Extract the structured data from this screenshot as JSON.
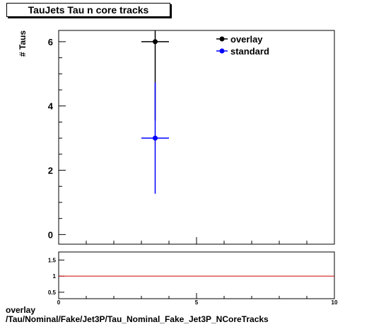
{
  "title": "TauJets Tau n core tracks",
  "footer": {
    "line1": "overlay",
    "line2": "/Tau/Nominal/Fake/Jet3P/Tau_Nominal_Fake_Jet3P_NCoreTracks"
  },
  "chart_data": [
    {
      "type": "scatter",
      "ylabel": "# Taus",
      "xlim": [
        0,
        10
      ],
      "ylim": [
        -0.3,
        6.35
      ],
      "yticks": [
        0,
        2,
        4,
        6
      ],
      "legend": "top-right",
      "series": [
        {
          "name": "overlay",
          "color": "#000000",
          "x": [
            3.5
          ],
          "y": [
            6
          ],
          "xerr": [
            0.5
          ],
          "yerr": [
            2.45
          ]
        },
        {
          "name": "standard",
          "color": "#0000ff",
          "x": [
            3.5
          ],
          "y": [
            3
          ],
          "xerr": [
            0.5
          ],
          "yerr": [
            1.73
          ]
        }
      ]
    },
    {
      "type": "line",
      "xlim": [
        0,
        10
      ],
      "ylim": [
        0.3,
        1.75
      ],
      "xticks": [
        0,
        5,
        10
      ],
      "yticks": [
        0.5,
        1,
        1.5
      ],
      "xlabel": "",
      "reference_line": {
        "y": 1,
        "color": "#cc0000"
      }
    }
  ]
}
